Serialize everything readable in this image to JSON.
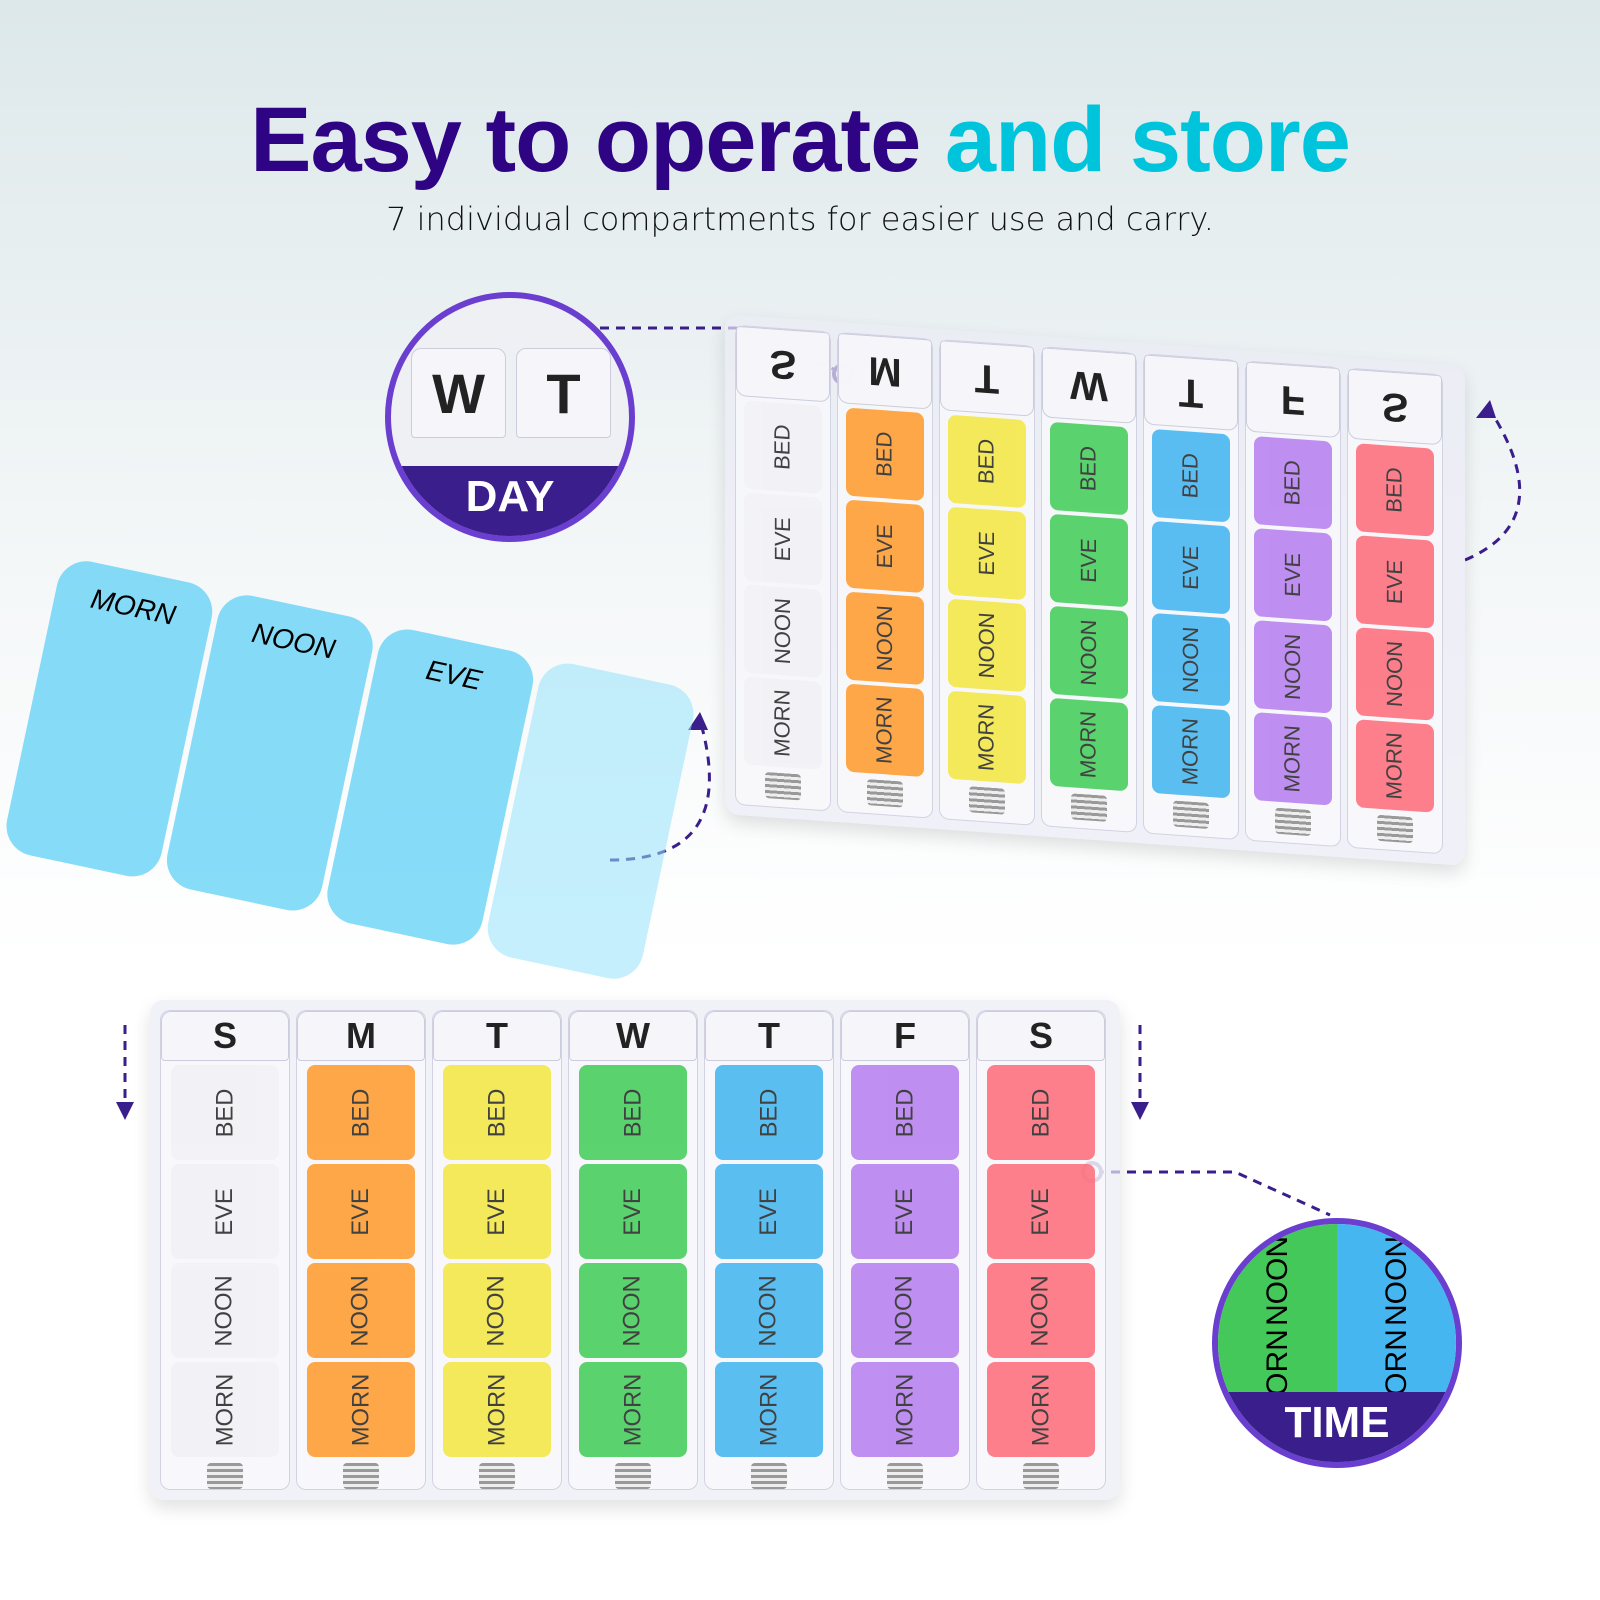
{
  "title": {
    "part1": "Easy to operate",
    "part2": "and store"
  },
  "subtitle": "7 individual compartments for easier use and carry.",
  "colors": {
    "title_dark": "#2e0384",
    "title_accent": "#00c3dc",
    "callout": "#6a3fd0",
    "compartments": [
      "#f2f2f6",
      "#ff9a2a",
      "#f4e640",
      "#3fcc55",
      "#3fb4f0",
      "#b67cf0",
      "#ff6a78"
    ]
  },
  "days": [
    "S",
    "M",
    "T",
    "W",
    "T",
    "F",
    "S"
  ],
  "times": [
    "BED",
    "EVE",
    "NOON",
    "MORN"
  ],
  "single_case": {
    "labels": [
      "MORN",
      "NOON",
      "EVE"
    ],
    "color": "#5fd0f5"
  },
  "callout_day": {
    "label": "DAY",
    "letters": [
      "W",
      "T"
    ]
  },
  "callout_time": {
    "label": "TIME",
    "letters": [
      "NOON",
      "MORN",
      "NOON",
      "MORN"
    ]
  }
}
